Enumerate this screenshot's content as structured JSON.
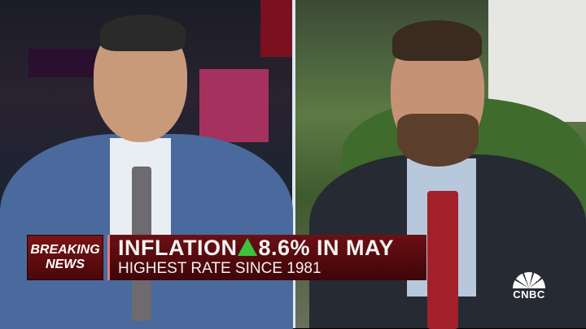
{
  "lower_third": {
    "badge_line1": "BREAKING",
    "badge_line2": "NEWS",
    "headline_prefix": "INFLATION",
    "headline_icon": "up-triangle-icon",
    "headline_value": "8.6% IN MAY",
    "subheadline": "HIGHEST RATE SINCE 1981"
  },
  "network_logo": {
    "text": "CNBC",
    "icon": "peacock-icon"
  },
  "colors": {
    "banner": "#6b1014",
    "up_arrow": "#3cc33c"
  }
}
